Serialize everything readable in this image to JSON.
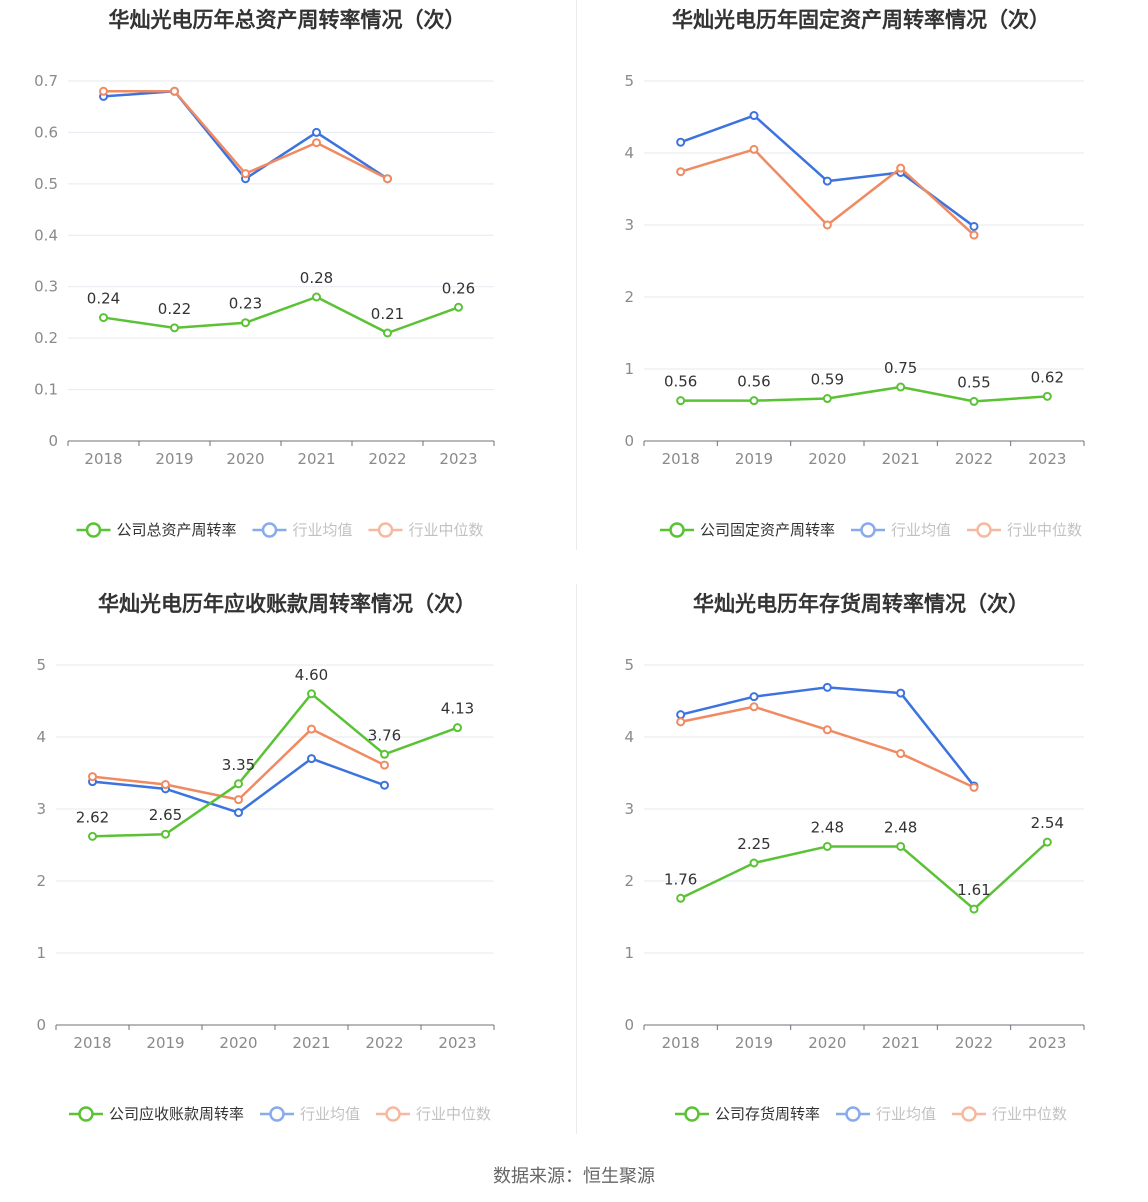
{
  "colors": {
    "company": "#5bc236",
    "avg": "#3c73de",
    "median": "#f08a62"
  },
  "source": "数据来源：恒生聚源",
  "chart_data": [
    {
      "type": "line",
      "title": "华灿光电历年总资产周转率情况（次）",
      "categories": [
        "2018",
        "2019",
        "2020",
        "2021",
        "2022",
        "2023"
      ],
      "ylim": [
        0,
        0.7
      ],
      "yticks": [
        "0",
        "0.1",
        "0.2",
        "0.3",
        "0.4",
        "0.5",
        "0.6",
        "0.7"
      ],
      "grid": true,
      "legend_position": "bottom",
      "series": [
        {
          "name": "公司总资产周转率",
          "key": "company",
          "values": [
            0.24,
            0.22,
            0.23,
            0.28,
            0.21,
            0.26
          ],
          "labels": [
            "0.24",
            "0.22",
            "0.23",
            "0.28",
            "0.21",
            "0.26"
          ]
        },
        {
          "name": "行业均值",
          "key": "avg",
          "values": [
            0.67,
            0.68,
            0.51,
            0.6,
            0.51,
            null
          ]
        },
        {
          "name": "行业中位数",
          "key": "median",
          "values": [
            0.68,
            0.68,
            0.52,
            0.58,
            0.51,
            null
          ]
        }
      ]
    },
    {
      "type": "line",
      "title": "华灿光电历年固定资产周转率情况（次）",
      "categories": [
        "2018",
        "2019",
        "2020",
        "2021",
        "2022",
        "2023"
      ],
      "ylim": [
        0,
        5
      ],
      "yticks": [
        "0",
        "1",
        "2",
        "3",
        "4",
        "5"
      ],
      "grid": true,
      "legend_position": "bottom",
      "series": [
        {
          "name": "公司固定资产周转率",
          "key": "company",
          "values": [
            0.56,
            0.56,
            0.59,
            0.75,
            0.55,
            0.62
          ],
          "labels": [
            "0.56",
            "0.56",
            "0.59",
            "0.75",
            "0.55",
            "0.62"
          ]
        },
        {
          "name": "行业均值",
          "key": "avg",
          "values": [
            4.15,
            4.52,
            3.61,
            3.73,
            2.98,
            null
          ]
        },
        {
          "name": "行业中位数",
          "key": "median",
          "values": [
            3.74,
            4.05,
            3.0,
            3.79,
            2.86,
            null
          ]
        }
      ]
    },
    {
      "type": "line",
      "title": "华灿光电历年应收账款周转率情况（次）",
      "categories": [
        "2018",
        "2019",
        "2020",
        "2021",
        "2022",
        "2023"
      ],
      "ylim": [
        0,
        5
      ],
      "yticks": [
        "0",
        "1",
        "2",
        "3",
        "4",
        "5"
      ],
      "grid": true,
      "legend_position": "bottom",
      "series": [
        {
          "name": "公司应收账款周转率",
          "key": "company",
          "values": [
            2.62,
            2.65,
            3.35,
            4.6,
            3.76,
            4.13
          ],
          "labels": [
            "2.62",
            "2.65",
            "3.35",
            "4.60",
            "3.76",
            "4.13"
          ]
        },
        {
          "name": "行业均值",
          "key": "avg",
          "values": [
            3.38,
            3.28,
            2.95,
            3.7,
            3.33,
            null
          ]
        },
        {
          "name": "行业中位数",
          "key": "median",
          "values": [
            3.45,
            3.34,
            3.13,
            4.11,
            3.61,
            null
          ]
        }
      ]
    },
    {
      "type": "line",
      "title": "华灿光电历年存货周转率情况（次）",
      "categories": [
        "2018",
        "2019",
        "2020",
        "2021",
        "2022",
        "2023"
      ],
      "ylim": [
        0,
        5
      ],
      "yticks": [
        "0",
        "1",
        "2",
        "3",
        "4",
        "5"
      ],
      "grid": true,
      "legend_position": "bottom",
      "series": [
        {
          "name": "公司存货周转率",
          "key": "company",
          "values": [
            1.76,
            2.25,
            2.48,
            2.48,
            1.61,
            2.54
          ],
          "labels": [
            "1.76",
            "2.25",
            "2.48",
            "2.48",
            "1.61",
            "2.54"
          ]
        },
        {
          "name": "行业均值",
          "key": "avg",
          "values": [
            4.31,
            4.56,
            4.69,
            4.61,
            3.32,
            null
          ]
        },
        {
          "name": "行业中位数",
          "key": "median",
          "values": [
            4.21,
            4.42,
            4.1,
            3.77,
            3.3,
            null
          ]
        }
      ]
    }
  ]
}
